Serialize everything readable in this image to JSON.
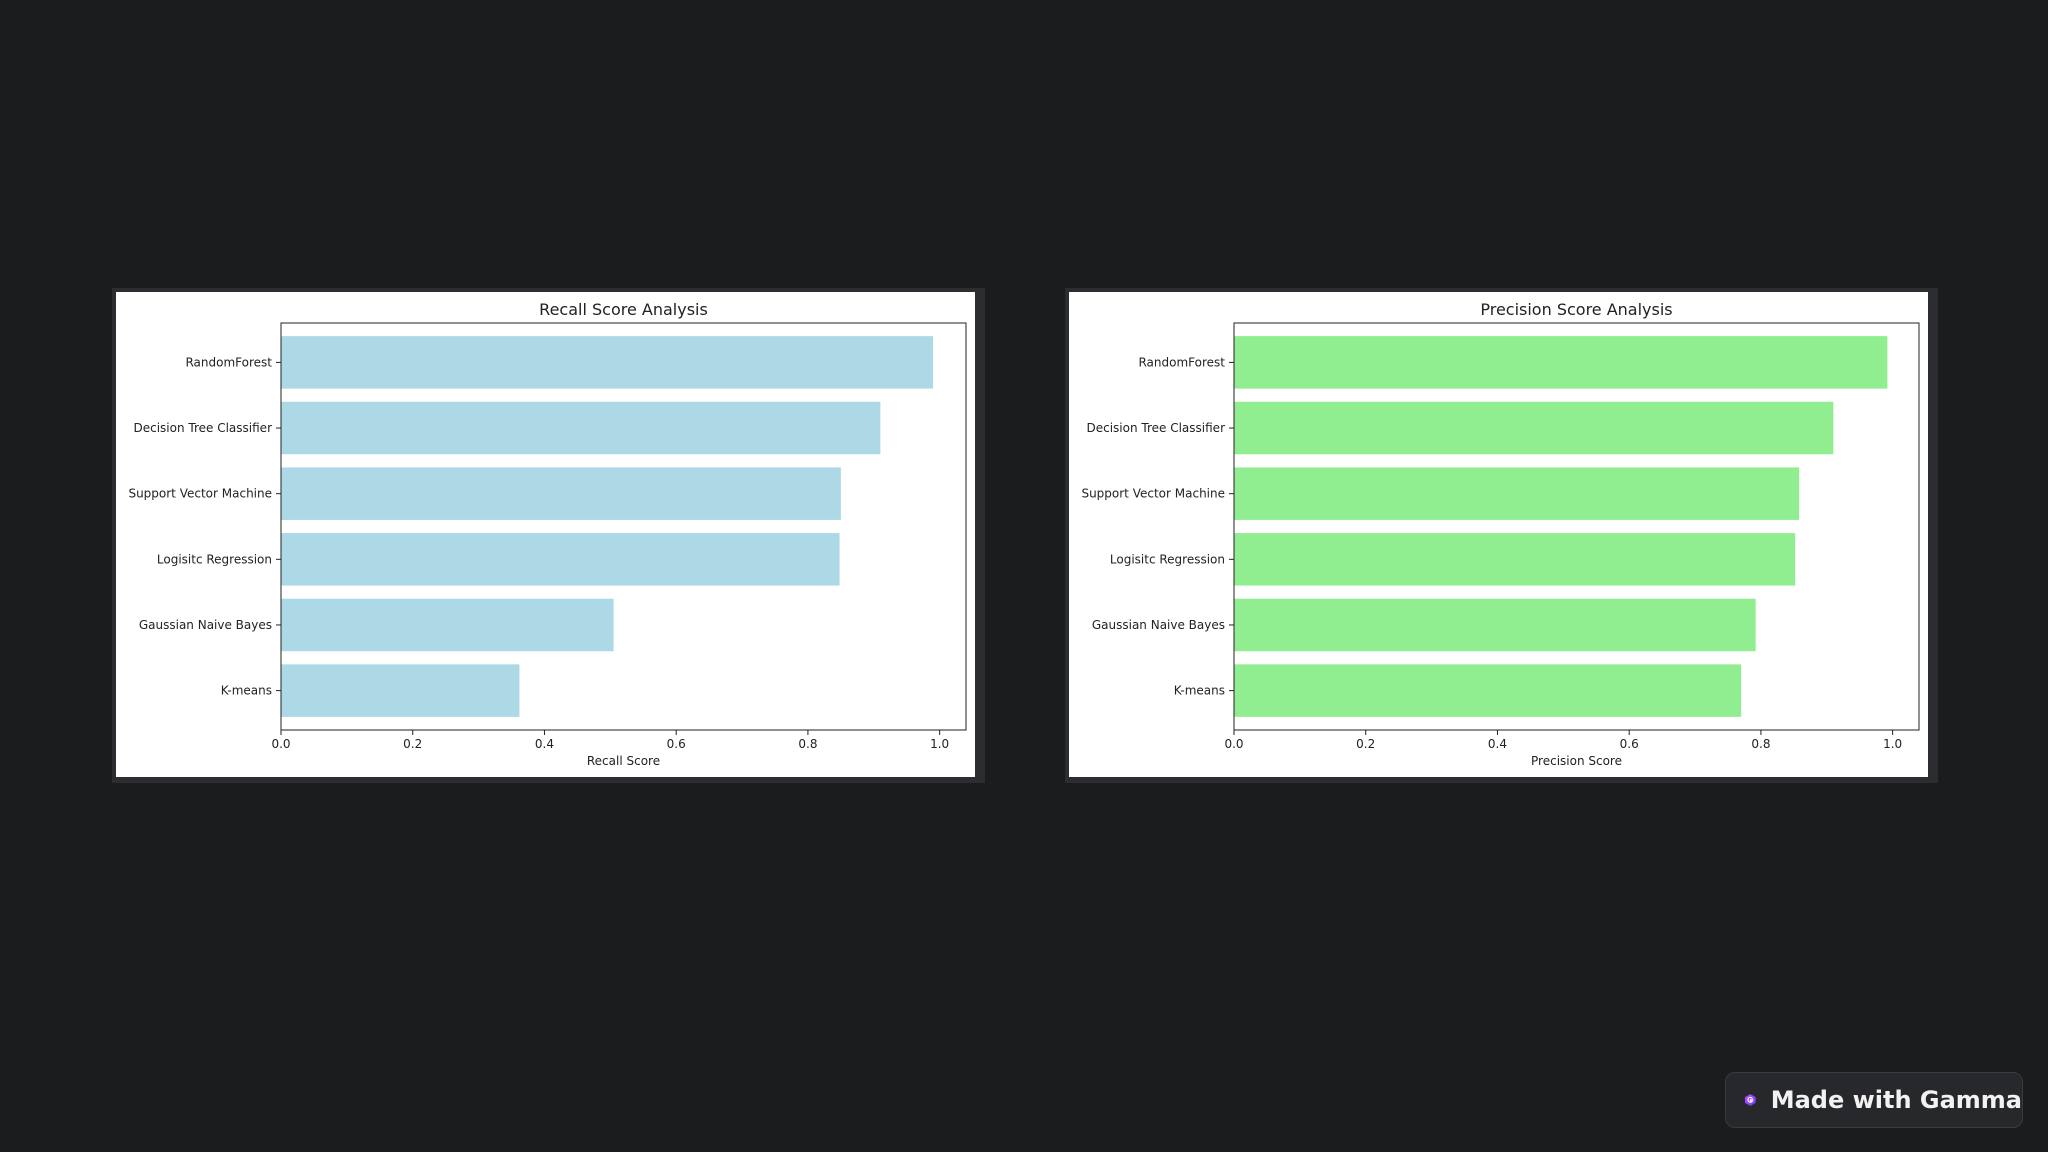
{
  "chart_data": [
    {
      "type": "bar",
      "orientation": "horizontal",
      "title": "Recall Score Analysis",
      "xlabel": "Recall Score",
      "ylabel": "",
      "xlim": [
        0,
        1.04
      ],
      "xticks": [
        0.0,
        0.2,
        0.4,
        0.6,
        0.8,
        1.0
      ],
      "xtick_labels": [
        "0.0",
        "0.2",
        "0.4",
        "0.6",
        "0.8",
        "1.0"
      ],
      "categories": [
        "RandomForest",
        "Decision Tree Classifier",
        "Support Vector Machine",
        "Logisitc Regression",
        "Gaussian Naive Bayes",
        "K-means"
      ],
      "values": [
        0.99,
        0.91,
        0.85,
        0.848,
        0.505,
        0.362
      ],
      "color": "#add8e6",
      "grid": false
    },
    {
      "type": "bar",
      "orientation": "horizontal",
      "title": "Precision Score Analysis",
      "xlabel": "Precision Score",
      "ylabel": "",
      "xlim": [
        0,
        1.04
      ],
      "xticks": [
        0.0,
        0.2,
        0.4,
        0.6,
        0.8,
        1.0
      ],
      "xtick_labels": [
        "0.0",
        "0.2",
        "0.4",
        "0.6",
        "0.8",
        "1.0"
      ],
      "categories": [
        "RandomForest",
        "Decision Tree Classifier",
        "Support Vector Machine",
        "Logisitc Regression",
        "Gaussian Naive Bayes",
        "K-means"
      ],
      "values": [
        0.992,
        0.91,
        0.858,
        0.852,
        0.792,
        0.77
      ],
      "color": "#90ee90",
      "grid": false
    }
  ],
  "badge": {
    "label": "Made with Gamma",
    "icon": "gamma-logo-icon"
  }
}
